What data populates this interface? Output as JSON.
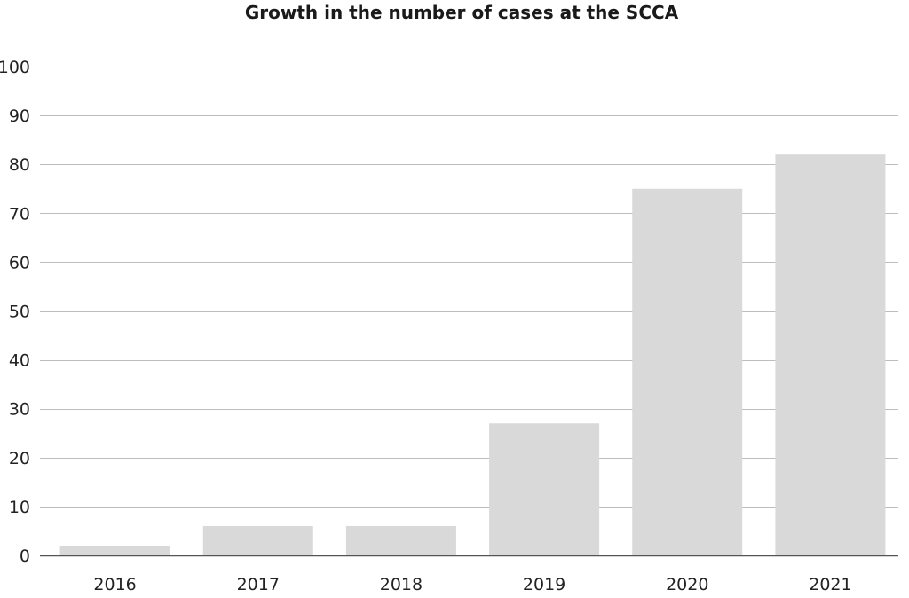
{
  "chart_data": {
    "type": "bar",
    "title": "Growth in the number of cases at the SCCA",
    "xlabel": "",
    "ylabel": "",
    "categories": [
      "2016",
      "2017",
      "2018",
      "2019",
      "2020",
      "2021"
    ],
    "values": [
      2,
      6,
      6,
      27,
      75,
      82
    ],
    "ylim": [
      0,
      100
    ],
    "yticks": [
      0,
      10,
      20,
      30,
      40,
      50,
      60,
      70,
      80,
      90,
      100
    ],
    "grid": true,
    "legend": "none",
    "colors": {
      "bar": "#d9d9d9",
      "grid": "#bdbdbd",
      "axis": "#555555",
      "text": "#222222"
    }
  }
}
